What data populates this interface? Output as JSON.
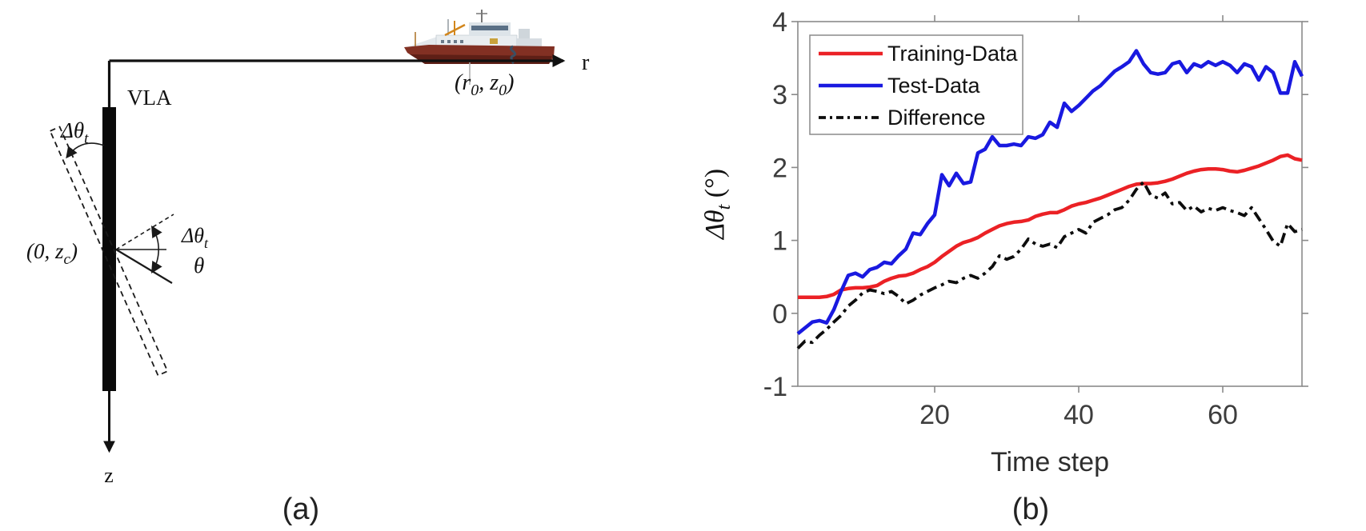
{
  "page": {
    "background": "#ffffff"
  },
  "panel_a": {
    "caption": "(a)",
    "array_label": "VLA",
    "range_axis_label": "r",
    "depth_axis_label": "z",
    "array_center_label": {
      "pre": "(0, z",
      "sub": "c",
      "post": ")"
    },
    "source_coordinate_label": {
      "pre": "(r",
      "sub1": "0",
      "mid": ", z",
      "sub2": "0",
      "post": ")"
    },
    "tilt_angle_upper": {
      "pre": "Δθ",
      "sub": "t"
    },
    "tilt_angle_inner": {
      "pre": "Δθ",
      "sub": "t"
    },
    "arrival_angle_label": "θ"
  },
  "panel_b": {
    "caption": "(b)"
  },
  "colors": {
    "training": "#eb2125",
    "test": "#1919e0",
    "difference": "#0d0d0d",
    "axis_frame": "#8a8a8a",
    "tick_label": "#3d3d3d",
    "axis_title": "#2e2e2e",
    "legend_border": "#8a8a8a",
    "legend_text": "#111111"
  },
  "chart_data": {
    "type": "line",
    "title": "",
    "xlabel": "Time step",
    "ylabel": "Δθt (°)",
    "ylabel_parts": {
      "pre": "Δθ",
      "sub": "t",
      "post": " (°)"
    },
    "xlim": [
      1,
      71
    ],
    "ylim": [
      -1,
      4
    ],
    "xticks": [
      20,
      40,
      60
    ],
    "yticks": [
      -1,
      0,
      1,
      2,
      3,
      4
    ],
    "grid": false,
    "legend_position": "top-left",
    "series": [
      {
        "name": "Training-Data",
        "color": "#eb2125",
        "style": "solid",
        "width": 4.5,
        "values": [
          0.22,
          0.22,
          0.22,
          0.22,
          0.23,
          0.26,
          0.32,
          0.34,
          0.35,
          0.35,
          0.36,
          0.38,
          0.44,
          0.48,
          0.51,
          0.52,
          0.55,
          0.6,
          0.64,
          0.7,
          0.78,
          0.85,
          0.92,
          0.97,
          1.0,
          1.04,
          1.1,
          1.15,
          1.2,
          1.23,
          1.25,
          1.26,
          1.28,
          1.33,
          1.36,
          1.38,
          1.38,
          1.42,
          1.47,
          1.5,
          1.52,
          1.55,
          1.58,
          1.62,
          1.66,
          1.7,
          1.74,
          1.77,
          1.78,
          1.78,
          1.79,
          1.81,
          1.84,
          1.88,
          1.92,
          1.95,
          1.97,
          1.98,
          1.98,
          1.97,
          1.95,
          1.94,
          1.96,
          1.99,
          2.02,
          2.06,
          2.1,
          2.15,
          2.17,
          2.12,
          2.1
        ]
      },
      {
        "name": "Test-Data",
        "color": "#1919e0",
        "style": "solid",
        "width": 4.5,
        "values": [
          -0.28,
          -0.2,
          -0.12,
          -0.1,
          -0.13,
          0.05,
          0.3,
          0.52,
          0.55,
          0.5,
          0.6,
          0.63,
          0.7,
          0.68,
          0.79,
          0.88,
          1.1,
          1.08,
          1.23,
          1.35,
          1.9,
          1.75,
          1.92,
          1.78,
          1.8,
          2.2,
          2.25,
          2.42,
          2.3,
          2.3,
          2.32,
          2.3,
          2.42,
          2.4,
          2.45,
          2.62,
          2.55,
          2.88,
          2.77,
          2.85,
          2.95,
          3.05,
          3.12,
          3.22,
          3.32,
          3.38,
          3.45,
          3.6,
          3.42,
          3.3,
          3.28,
          3.3,
          3.42,
          3.45,
          3.3,
          3.42,
          3.38,
          3.45,
          3.4,
          3.45,
          3.4,
          3.3,
          3.42,
          3.38,
          3.2,
          3.38,
          3.3,
          3.02,
          3.02,
          3.45,
          3.25
        ]
      },
      {
        "name": "Difference",
        "color": "#0d0d0d",
        "style": "dashdot",
        "width": 3.8,
        "values": [
          -0.48,
          -0.38,
          -0.4,
          -0.3,
          -0.22,
          -0.12,
          -0.03,
          0.1,
          0.18,
          0.28,
          0.32,
          0.3,
          0.27,
          0.3,
          0.23,
          0.13,
          0.18,
          0.25,
          0.3,
          0.35,
          0.39,
          0.44,
          0.42,
          0.48,
          0.52,
          0.48,
          0.55,
          0.64,
          0.79,
          0.74,
          0.78,
          0.88,
          1.02,
          0.95,
          0.92,
          0.95,
          0.9,
          1.05,
          1.1,
          1.15,
          1.1,
          1.25,
          1.3,
          1.35,
          1.42,
          1.45,
          1.55,
          1.7,
          1.8,
          1.62,
          1.58,
          1.65,
          1.5,
          1.52,
          1.41,
          1.47,
          1.39,
          1.44,
          1.41,
          1.45,
          1.41,
          1.38,
          1.34,
          1.45,
          1.3,
          1.15,
          0.99,
          0.92,
          1.23,
          1.12,
          1.15
        ]
      }
    ]
  }
}
